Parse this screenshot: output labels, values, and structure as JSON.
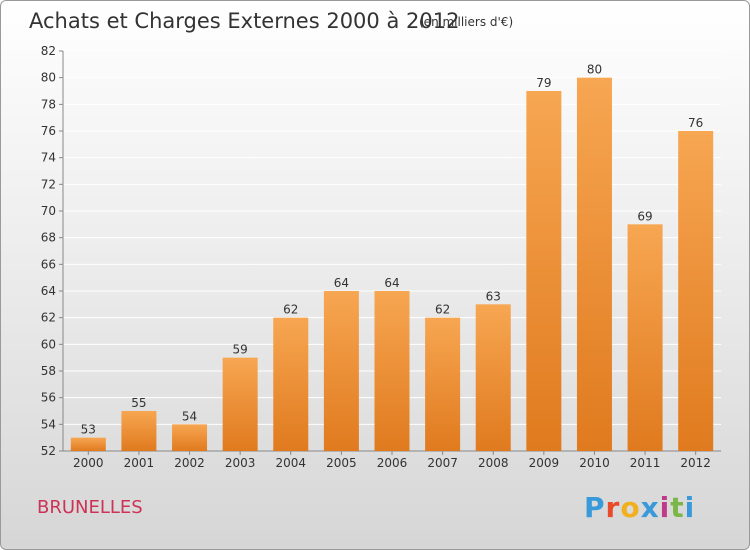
{
  "chart_data": {
    "type": "bar",
    "title": "Achats et Charges Externes 2000 à 2012",
    "subtitle": "(en milliers d'€)",
    "categories": [
      "2000",
      "2001",
      "2002",
      "2003",
      "2004",
      "2005",
      "2006",
      "2007",
      "2008",
      "2009",
      "2010",
      "2011",
      "2012"
    ],
    "values": [
      53,
      55,
      54,
      59,
      62,
      64,
      64,
      62,
      63,
      79,
      80,
      69,
      76
    ],
    "ylim": [
      52,
      82
    ],
    "yticks": [
      52,
      54,
      56,
      58,
      60,
      62,
      64,
      66,
      68,
      70,
      72,
      74,
      76,
      78,
      80,
      82
    ],
    "xlabel": "",
    "ylabel": "",
    "grid": "horizontal",
    "legend": "none",
    "colors": {
      "bar_top": "#f7a652",
      "bar_bottom": "#e07a1e",
      "grid": "#ffffff",
      "axis": "#333333"
    }
  },
  "location": "BRUNELLES",
  "logo": {
    "text": "Proxiti",
    "colors": [
      "#3a9ad9",
      "#e84a2a",
      "#f2b01e",
      "#3a9ad9",
      "#c03a8a",
      "#7ab648",
      "#3a9ad9"
    ]
  }
}
